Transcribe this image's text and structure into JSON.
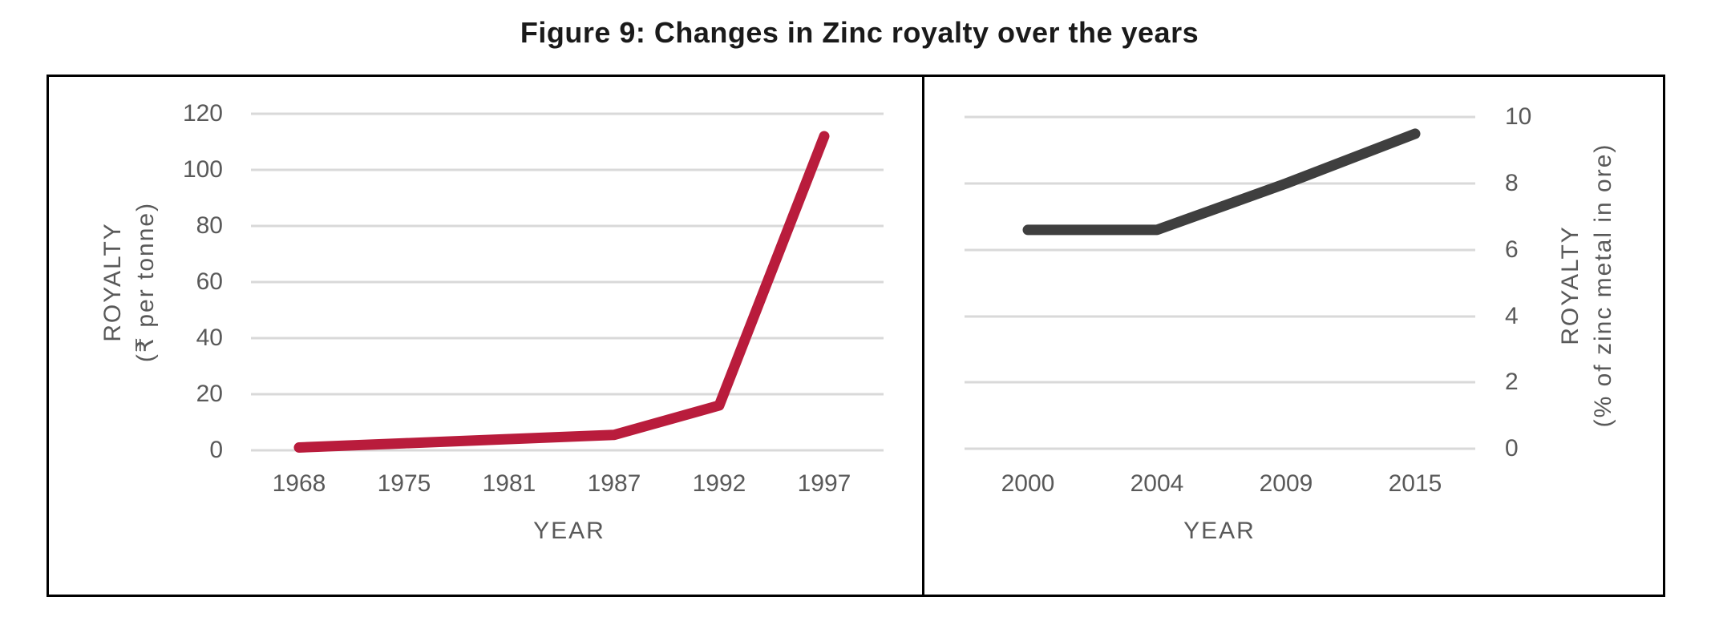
{
  "figure": {
    "title": "Figure 9: Changes in Zinc royalty over the years"
  },
  "palette": {
    "title_text": "#1a1a1a",
    "tick_text": "#595959",
    "grid": "#d9d9d9",
    "border": "#000000"
  },
  "chart_data": [
    {
      "type": "line",
      "name": "zinc-royalty-rupees-per-tonne",
      "categories": [
        "1968",
        "1975",
        "1981",
        "1987",
        "1992",
        "1997"
      ],
      "values": [
        1,
        2.5,
        4,
        5.5,
        16,
        112
      ],
      "xlabel": "YEAR",
      "ylabel_lines": [
        "ROYALTY",
        "(₹ per tonne)"
      ],
      "y_ticks": [
        0,
        20,
        40,
        60,
        80,
        100,
        120
      ],
      "ylim": [
        0,
        120
      ],
      "y_axis_side": "left",
      "line_color": "#b91c3c",
      "grid": true,
      "legend": "none"
    },
    {
      "type": "line",
      "name": "zinc-royalty-percent-of-metal",
      "categories": [
        "2000",
        "2004",
        "2009",
        "2015"
      ],
      "values": [
        6.6,
        6.6,
        8,
        9.5
      ],
      "xlabel": "YEAR",
      "ylabel_lines": [
        "ROYALTY",
        "(% of zinc metal in ore)"
      ],
      "y_ticks": [
        0,
        2,
        4,
        6,
        8,
        10
      ],
      "ylim": [
        0,
        10
      ],
      "y_axis_side": "right",
      "line_color": "#3f3f3f",
      "grid": true,
      "legend": "none"
    }
  ]
}
